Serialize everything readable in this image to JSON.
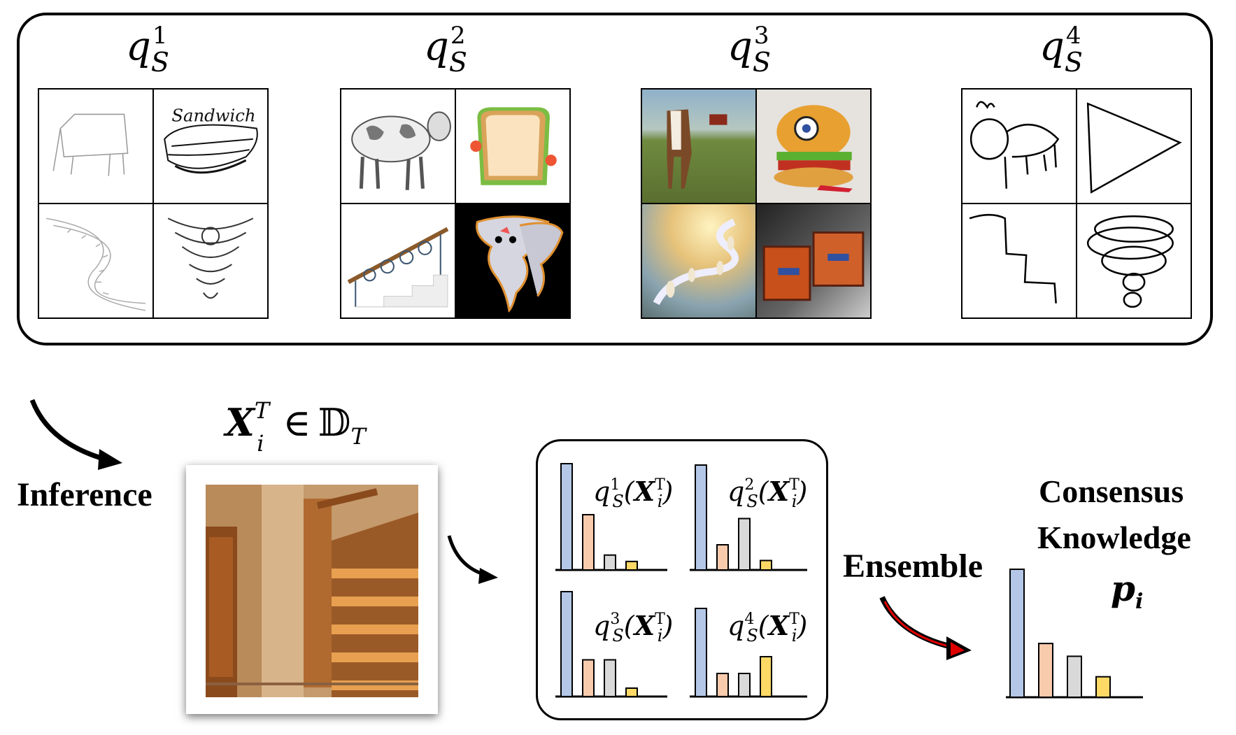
{
  "sources": [
    {
      "label_base": "q",
      "label_sub": "S",
      "label_sup": "1"
    },
    {
      "label_base": "q",
      "label_sub": "S",
      "label_sup": "2"
    },
    {
      "label_base": "q",
      "label_sub": "S",
      "label_sup": "3"
    },
    {
      "label_base": "q",
      "label_sub": "S",
      "label_sup": "4"
    }
  ],
  "target": {
    "x": "X",
    "x_sub": "i",
    "x_sup": "T",
    "symbol": "∈",
    "domain": "𝔻",
    "domain_sub": "T"
  },
  "labels": {
    "inference": "Inference",
    "ensemble": "Ensemble",
    "consensus_line1": "Consensus",
    "consensus_line2": "Knowledge",
    "consensus_symbol": "p",
    "consensus_sub": "i"
  },
  "chart_data": [
    {
      "type": "bar",
      "label": "q_S^1(X_i^T)",
      "values": [
        1.0,
        0.52,
        0.14,
        0.08
      ]
    },
    {
      "type": "bar",
      "label": "q_S^2(X_i^T)",
      "values": [
        1.0,
        0.24,
        0.49,
        0.09
      ]
    },
    {
      "type": "bar",
      "label": "q_S^3(X_i^T)",
      "values": [
        1.0,
        0.35,
        0.35,
        0.08
      ]
    },
    {
      "type": "bar",
      "label": "q_S^4(X_i^T)",
      "values": [
        0.84,
        0.22,
        0.22,
        0.38
      ]
    },
    {
      "type": "bar",
      "label": "p_i",
      "values": [
        1.0,
        0.42,
        0.32,
        0.16
      ]
    }
  ],
  "colors": {
    "blue": "#b4c7e7",
    "orange": "#f8cbad",
    "gray": "#d9d9d9",
    "yellow": "#ffd966",
    "red": "#e00000"
  }
}
